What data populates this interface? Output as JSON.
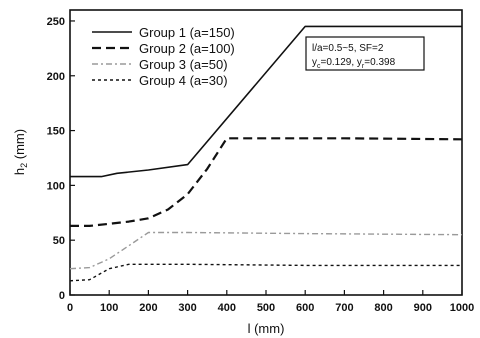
{
  "chart_data": {
    "type": "line",
    "xlabel": "l (mm)",
    "ylabel": "h",
    "ylabel_sub": "2",
    "ylabel_unit": " (mm)",
    "xlim": [
      0,
      1000
    ],
    "ylim": [
      0,
      260
    ],
    "xticks": [
      0,
      100,
      200,
      300,
      400,
      500,
      600,
      700,
      800,
      900,
      1000
    ],
    "yticks": [
      0,
      50,
      100,
      150,
      200,
      250
    ],
    "grid": false,
    "legend_position": "top-left",
    "series": [
      {
        "name": "Group 1 (a=150)",
        "style": "solid",
        "color": "#111111",
        "x": [
          0,
          80,
          120,
          200,
          300,
          600,
          1000
        ],
        "y": [
          108,
          108,
          111,
          114,
          119,
          245,
          245
        ]
      },
      {
        "name": "Group 2 (a=100)",
        "style": "dash",
        "color": "#111111",
        "x": [
          0,
          50,
          100,
          150,
          200,
          250,
          300,
          350,
          400,
          700,
          1000
        ],
        "y": [
          63,
          63,
          65,
          67,
          70,
          78,
          92,
          115,
          143,
          143,
          142
        ]
      },
      {
        "name": "Group 3 (a=50)",
        "style": "dashdot",
        "color": "#9a9a9a",
        "x": [
          0,
          50,
          100,
          150,
          200,
          300,
          600,
          1000
        ],
        "y": [
          24,
          25,
          33,
          45,
          57,
          57,
          56,
          55
        ]
      },
      {
        "name": "Group 4 (a=30)",
        "style": "dot",
        "color": "#111111",
        "x": [
          0,
          50,
          100,
          150,
          300,
          600,
          1000
        ],
        "y": [
          13,
          14,
          24,
          28,
          28,
          27,
          27
        ]
      }
    ],
    "annotation": {
      "line1": "l/a=0.5~5, SF=2",
      "line2_a": "y",
      "line2_a_sub": "c",
      "line2_b": "=0.129, y",
      "line2_b_sub": "r",
      "line2_c": "=0.398"
    }
  }
}
